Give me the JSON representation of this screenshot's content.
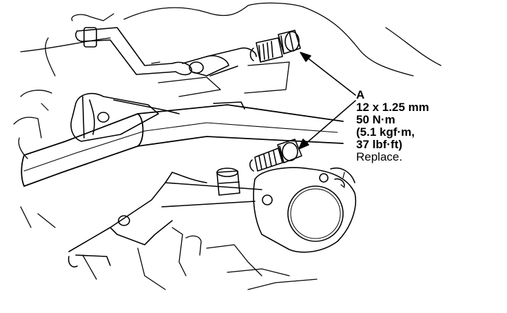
{
  "callout": {
    "letter": "A",
    "size": "12 x 1.25 mm",
    "torque_nm": "50 N·m",
    "torque_kgfm": "(5.1 kgf·m,",
    "torque_lbfft": "37 lbf·ft)",
    "note": "Replace."
  },
  "colors": {
    "line": "#000000",
    "background": "#ffffff"
  }
}
